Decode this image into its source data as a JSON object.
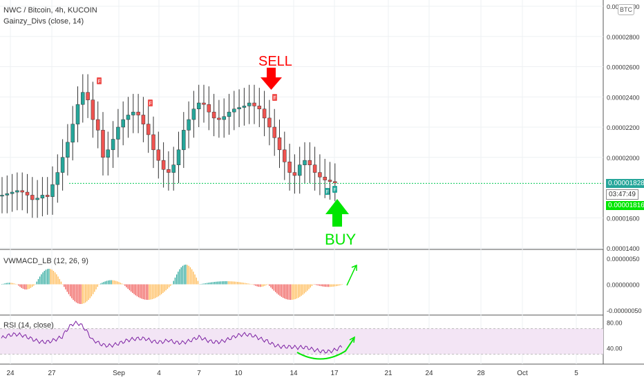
{
  "legend": {
    "symbol": "NWC / Bitcoin, 4h, KUCOIN",
    "indicator": "Gainzy_Divs (close, 14)",
    "macd": "VWMACD_LB (12, 26, 9)",
    "rsi": "RSI (14, close)"
  },
  "currency_badge": "BTC",
  "price_tags": {
    "last": "0.00001828",
    "countdown": "03:47:49",
    "current": "0.00001816"
  },
  "annotations": {
    "sell": "SELL",
    "buy": "BUY",
    "marker": "F"
  },
  "colors": {
    "up": "#26a69a",
    "down": "#ef5350",
    "sell": "#ff0000",
    "buy": "#00e600",
    "hline": "#00c853",
    "rsi_line": "#7b1fa2",
    "rsi_band": "#f3e5f5"
  },
  "chart_data": [
    {
      "type": "candlestick",
      "title": "NWC / Bitcoin, 4h, KUCOIN",
      "y_ticks": [
        "0.00003000",
        "0.00002800",
        "0.00002600",
        "0.00002400",
        "0.00002200",
        "0.00002000",
        "0.00001600",
        "0.00001400"
      ],
      "ylim": [
        1.4e-05,
        3e-05
      ],
      "x_ticks": [
        "24",
        "27",
        "Sep",
        "4",
        "7",
        "10",
        "14",
        "17",
        "21",
        "24",
        "28",
        "Oct",
        "5"
      ],
      "close_series": [
        1.75e-05,
        1.76e-05,
        1.77e-05,
        1.78e-05,
        1.77e-05,
        1.75e-05,
        1.72e-05,
        1.73e-05,
        1.75e-05,
        1.74e-05,
        1.82e-05,
        1.9e-05,
        2e-05,
        2.1e-05,
        2.22e-05,
        2.35e-05,
        2.43e-05,
        2.38e-05,
        2.25e-05,
        2.18e-05,
        2e-05,
        2.05e-05,
        2.12e-05,
        2.2e-05,
        2.25e-05,
        2.28e-05,
        2.3e-05,
        2.28e-05,
        2.22e-05,
        2.15e-05,
        2.05e-05,
        1.98e-05,
        1.92e-05,
        1.9e-05,
        1.95e-05,
        2.05e-05,
        2.18e-05,
        2.25e-05,
        2.32e-05,
        2.36e-05,
        2.35e-05,
        2.3e-05,
        2.26e-05,
        2.25e-05,
        2.27e-05,
        2.3e-05,
        2.32e-05,
        2.33e-05,
        2.34e-05,
        2.36e-05,
        2.34e-05,
        2.32e-05,
        2.26e-05,
        2.2e-05,
        2.13e-05,
        2.05e-05,
        1.97e-05,
        1.9e-05,
        1.88e-05,
        1.95e-05,
        1.98e-05,
        1.95e-05,
        1.9e-05,
        1.87e-05,
        1.85e-05,
        1.84e-05,
        1.83e-05
      ],
      "horizontal_line": 1.828e-05
    },
    {
      "type": "histogram",
      "title": "VWMACD_LB (12, 26, 9)",
      "y_ticks": [
        "0.00000050",
        "0.00000000",
        "-0.00000050"
      ],
      "ylim": [
        -5e-07,
        5e-07
      ]
    },
    {
      "type": "line",
      "title": "RSI (14, close)",
      "y_ticks": [
        "80.00",
        "40.00"
      ],
      "ylim": [
        20,
        90
      ],
      "band": [
        30,
        70
      ]
    }
  ]
}
